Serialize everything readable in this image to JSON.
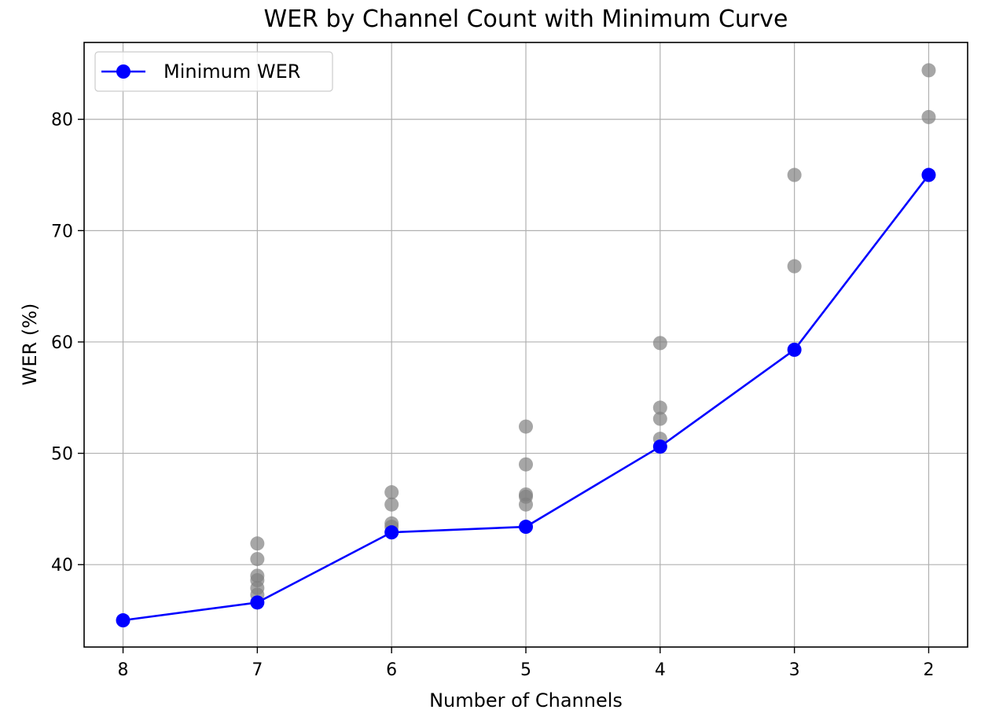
{
  "chart_data": {
    "type": "scatter+line",
    "title": "WER by Channel Count with Minimum Curve",
    "xlabel": "Number of Channels",
    "ylabel": "WER (%)",
    "x_inverted": true,
    "xlim": [
      8.29,
      1.71
    ],
    "ylim": [
      32.6,
      86.9
    ],
    "x_ticks": [
      8,
      7,
      6,
      5,
      4,
      3,
      2
    ],
    "y_ticks": [
      40,
      50,
      60,
      70,
      80
    ],
    "grid": true,
    "legend": {
      "position": "top-left",
      "entries": [
        "Minimum WER"
      ]
    },
    "series": [
      {
        "name": "Minimum WER",
        "kind": "line-with-markers",
        "color": "#0000ff",
        "points": [
          {
            "x": 8,
            "y": 35.0
          },
          {
            "x": 7,
            "y": 36.6
          },
          {
            "x": 6,
            "y": 42.9
          },
          {
            "x": 5,
            "y": 43.4
          },
          {
            "x": 4,
            "y": 50.6
          },
          {
            "x": 3,
            "y": 59.3
          },
          {
            "x": 2,
            "y": 75.0
          }
        ]
      },
      {
        "kind": "scatter",
        "color": "#808080",
        "opacity": 0.7,
        "points": [
          {
            "x": 7,
            "y": 41.9
          },
          {
            "x": 7,
            "y": 40.5
          },
          {
            "x": 7,
            "y": 39.0
          },
          {
            "x": 7,
            "y": 38.6
          },
          {
            "x": 7,
            "y": 37.9
          },
          {
            "x": 7,
            "y": 37.3
          },
          {
            "x": 6,
            "y": 46.5
          },
          {
            "x": 6,
            "y": 45.4
          },
          {
            "x": 6,
            "y": 43.7
          },
          {
            "x": 6,
            "y": 43.4
          },
          {
            "x": 5,
            "y": 52.4
          },
          {
            "x": 5,
            "y": 49.0
          },
          {
            "x": 5,
            "y": 46.3
          },
          {
            "x": 5,
            "y": 46.1
          },
          {
            "x": 5,
            "y": 45.4
          },
          {
            "x": 4,
            "y": 59.9
          },
          {
            "x": 4,
            "y": 54.1
          },
          {
            "x": 4,
            "y": 53.1
          },
          {
            "x": 4,
            "y": 51.3
          },
          {
            "x": 3,
            "y": 75.0
          },
          {
            "x": 3,
            "y": 66.8
          },
          {
            "x": 2,
            "y": 84.4
          },
          {
            "x": 2,
            "y": 80.2
          }
        ]
      }
    ]
  }
}
